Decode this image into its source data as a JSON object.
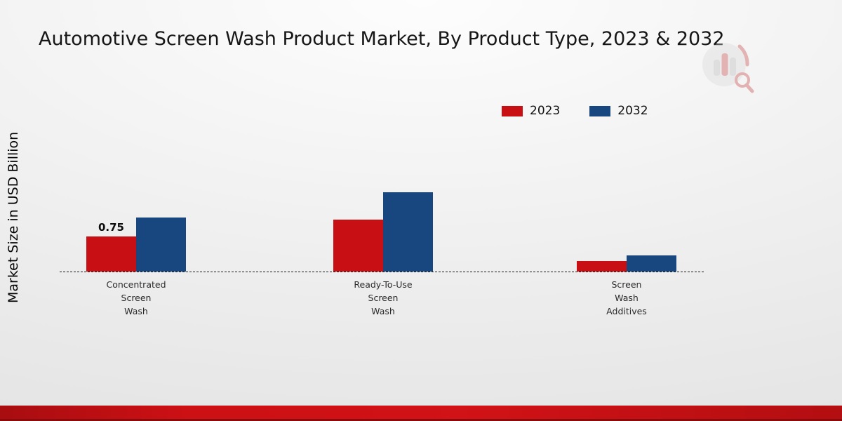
{
  "title": "Automotive Screen Wash Product Market, By Product Type, 2023 & 2032",
  "y_axis": {
    "label": "Market Size in USD Billion"
  },
  "legend": {
    "items": [
      {
        "label": "2023",
        "color": "#c80f13"
      },
      {
        "label": "2032",
        "color": "#17477e"
      }
    ],
    "position": "upper right"
  },
  "chart_data": {
    "type": "bar",
    "title": "Automotive Screen Wash Product Market, By Product Type, 2023 & 2032",
    "xlabel": "",
    "ylabel": "Market Size in USD Billion",
    "categories": [
      "Concentrated\nScreen\nWash",
      "Ready-To-Use\nScreen\nWash",
      "Screen\nWash\nAdditives"
    ],
    "series": [
      {
        "name": "2023",
        "color": "#c80f13",
        "values": [
          0.75,
          1.1,
          0.22
        ]
      },
      {
        "name": "2032",
        "color": "#17477e",
        "values": [
          1.15,
          1.68,
          0.35
        ]
      }
    ],
    "ylim": [
      0,
      2.0
    ],
    "grid": false,
    "baseline_style": "dashed",
    "legend_position": "upper right",
    "data_labels": [
      {
        "series": "2023",
        "category_index": 0,
        "text": "0.75"
      }
    ]
  },
  "branding": {
    "logo": "market-research-chart-logo"
  },
  "footer": {
    "band_color": "#cc1014"
  }
}
